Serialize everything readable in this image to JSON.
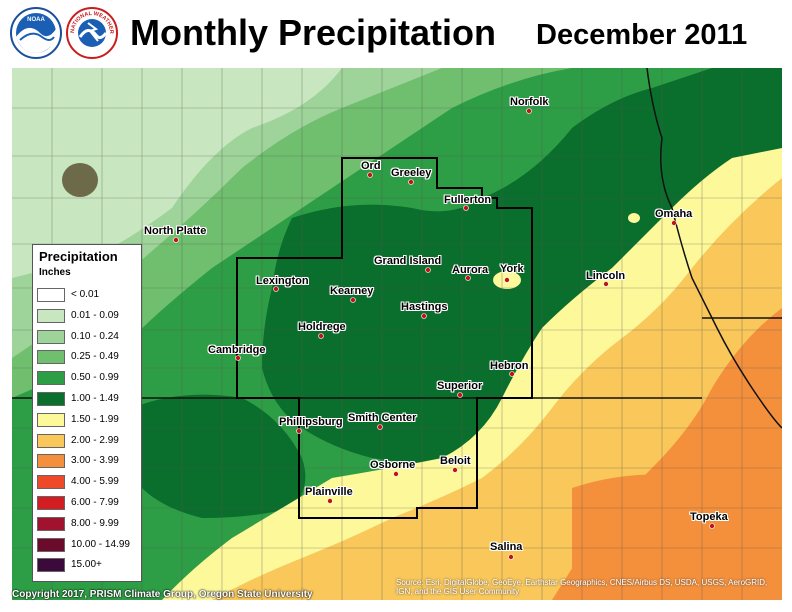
{
  "header": {
    "title": "Monthly Precipitation",
    "subtitle": "December 2011",
    "logo_left_icon": "noaa-logo",
    "logo_right_icon": "national-weather-service-logo",
    "logo_left_text": "NOAA",
    "logo_right_text": "NATIONAL WEATHER SERVICE"
  },
  "legend": {
    "title": "Precipitation",
    "units": "Inches",
    "items": [
      {
        "label": "< 0.01",
        "color": "#ffffff"
      },
      {
        "label": "0.01 - 0.09",
        "color": "#c8e6c0"
      },
      {
        "label": "0.10 - 0.24",
        "color": "#9ed49a"
      },
      {
        "label": "0.25 - 0.49",
        "color": "#6fbf6f"
      },
      {
        "label": "0.50 - 0.99",
        "color": "#2e9e46"
      },
      {
        "label": "1.00 - 1.49",
        "color": "#0a6e2c"
      },
      {
        "label": "1.50 - 1.99",
        "color": "#fdf89a"
      },
      {
        "label": "2.00 - 2.99",
        "color": "#f9c75a"
      },
      {
        "label": "3.00 - 3.99",
        "color": "#f4903c"
      },
      {
        "label": "4.00 - 5.99",
        "color": "#ee4a2a"
      },
      {
        "label": "6.00 - 7.99",
        "color": "#d31d22"
      },
      {
        "label": "8.00 - 9.99",
        "color": "#a0122d"
      },
      {
        "label": "10.00 - 14.99",
        "color": "#6b0a2b"
      },
      {
        "label": "15.00+",
        "color": "#3c0a3a"
      }
    ]
  },
  "cities": [
    {
      "name": "Norfolk"
    },
    {
      "name": "Ord"
    },
    {
      "name": "Greeley"
    },
    {
      "name": "Fullerton"
    },
    {
      "name": "North Platte"
    },
    {
      "name": "Omaha"
    },
    {
      "name": "Grand Island"
    },
    {
      "name": "Aurora"
    },
    {
      "name": "York"
    },
    {
      "name": "Lincoln"
    },
    {
      "name": "Lexington"
    },
    {
      "name": "Kearney"
    },
    {
      "name": "Hastings"
    },
    {
      "name": "Holdrege"
    },
    {
      "name": "Cambridge"
    },
    {
      "name": "Hebron"
    },
    {
      "name": "Superior"
    },
    {
      "name": "Phillipsburg"
    },
    {
      "name": "Smith Center"
    },
    {
      "name": "Osborne"
    },
    {
      "name": "Beloit"
    },
    {
      "name": "Plainville"
    },
    {
      "name": "Topeka"
    },
    {
      "name": "Salina"
    }
  ],
  "footer": {
    "copyright": "Copyright 2017, PRISM Climate Group, Oregon State University",
    "source": "Source: Esri, DigitalGlobe, GeoEye, Earthstar Geographics, CNES/Airbus DS, USDA, USGS, AeroGRID, IGN, and the GIS User Community"
  }
}
